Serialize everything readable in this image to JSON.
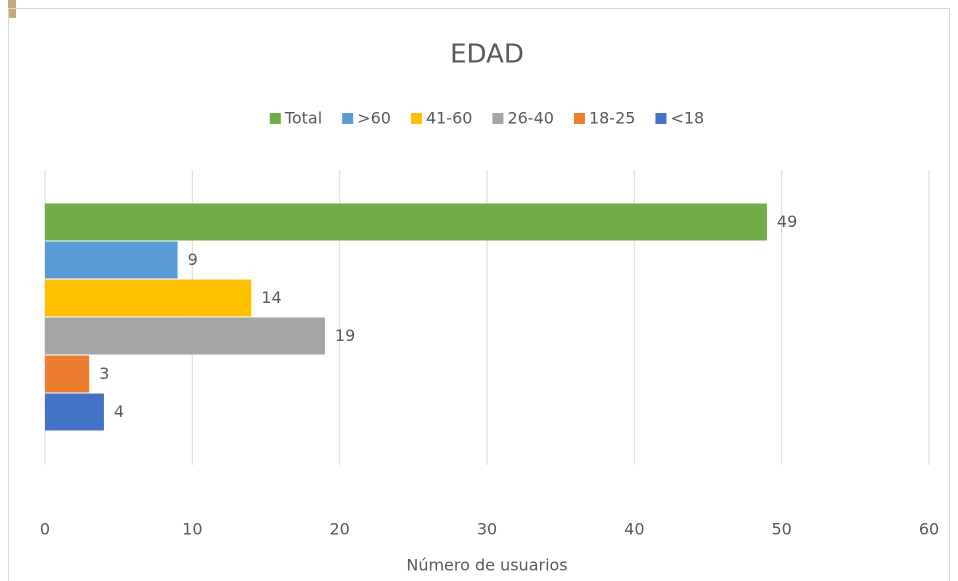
{
  "chart_data": {
    "type": "barh",
    "title": "EDAD",
    "x_label": "Número de usuarios",
    "categories": [
      null
    ],
    "series": [
      {
        "name": "Total",
        "color": "#70ad47",
        "values": [
          49
        ]
      },
      {
        "name": ">60",
        "color": "#5b9bd5",
        "values": [
          9
        ]
      },
      {
        "name": "41-60",
        "color": "#ffc000",
        "values": [
          14
        ]
      },
      {
        "name": "26-40",
        "color": "#a5a5a5",
        "values": [
          19
        ]
      },
      {
        "name": "18-25",
        "color": "#ed7d31",
        "values": [
          3
        ]
      },
      {
        "name": "<18",
        "color": "#4472c4",
        "values": [
          4
        ]
      }
    ],
    "xlim": [
      0,
      60
    ],
    "xticks": [
      0,
      10,
      20,
      30,
      40,
      50,
      60
    ],
    "grid": true,
    "legend": "top"
  }
}
